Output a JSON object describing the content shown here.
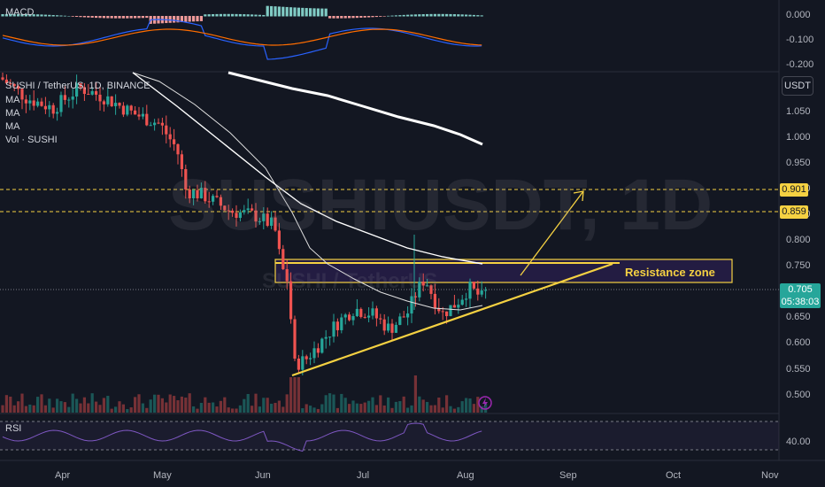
{
  "header": {
    "symbol_line": "SUSHI / TetherUS, 1D, BINANCE",
    "ma_labels": [
      "MA",
      "MA",
      "MA"
    ],
    "vol_label": "Vol · SUSHI",
    "macd_label": "MACD",
    "rsi_label": "RSI",
    "unit_button": "USDT"
  },
  "watermark": {
    "main": "SUSHIUSDT, 1D",
    "sub": "SUSHI / TetherUS"
  },
  "annotations": {
    "resistance_label": "Resistance zone"
  },
  "price_markers": {
    "target_high": "0.901",
    "target_low": "0.859",
    "last_price": "0.705",
    "countdown": "05:38:03"
  },
  "colors": {
    "background": "#131722",
    "up": "#26a69a",
    "down": "#ef5350",
    "annotation": "#f5d142",
    "resistance_fill": "#2a1f4e",
    "ma_slow": "#ffffff",
    "rsi_line": "#7e57c2",
    "macd_line": "#2962ff",
    "signal_line": "#ff6d00"
  },
  "chart_data": {
    "type": "candlestick",
    "x_ticks": [
      "Apr",
      "May",
      "Jun",
      "Jul",
      "Aug",
      "Sep",
      "Oct",
      "Nov"
    ],
    "y_ticks": [
      1.05,
      1.0,
      0.95,
      0.9,
      0.85,
      0.8,
      0.75,
      0.7,
      0.65,
      0.6,
      0.55,
      0.5
    ],
    "y_tick_labels": [
      "1.050",
      "1.000",
      "0.950",
      "0.900",
      "0.850",
      "0.800",
      "0.750",
      "0.700",
      "0.650",
      "0.600",
      "0.550",
      "0.500"
    ],
    "macd_ticks": [
      "0.000",
      "-0.100",
      "-0.200"
    ],
    "rsi_ticks": [
      "40.00"
    ],
    "resistance_zone": [
      0.722,
      0.762
    ],
    "target_levels": [
      0.901,
      0.859
    ],
    "last_price": 0.705,
    "ascending_support": {
      "start": [
        "Jun 10",
        0.54
      ],
      "end": [
        "Aug 15",
        0.755
      ]
    },
    "projection_arrow": {
      "start": [
        "Aug 8",
        0.73
      ],
      "end": [
        "Aug 24",
        0.9
      ]
    }
  }
}
